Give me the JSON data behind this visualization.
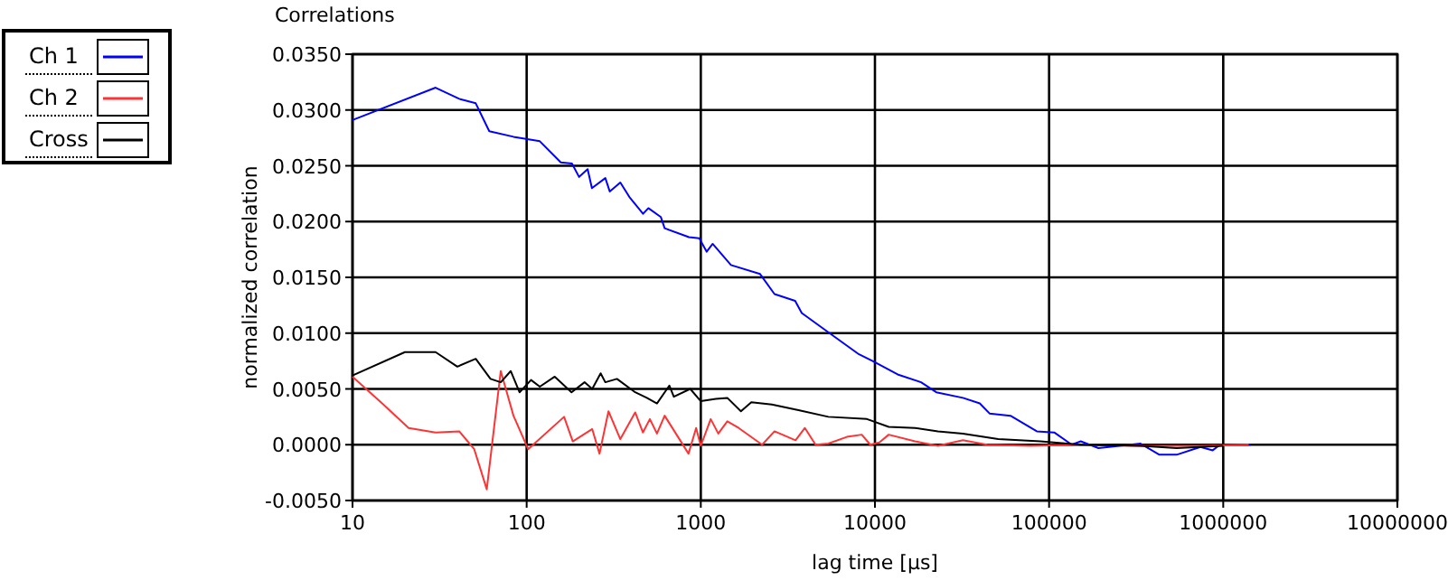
{
  "chart_data": {
    "type": "line",
    "title": "Correlations",
    "xlabel": "lag time [µs]",
    "ylabel": "normalized correlation",
    "log": "x",
    "grid": true,
    "legend": "top left",
    "marker": "none",
    "line_style": "solid",
    "xlim": [
      10,
      10000000
    ],
    "xticks": [
      10,
      100,
      1000,
      10000,
      100000,
      1000000,
      10000000
    ],
    "ylim": [
      -0.005,
      0.035
    ],
    "yticks": [
      {
        "value": -0.005,
        "label": "-0.0050"
      },
      {
        "value": 0,
        "label": "0.0000"
      },
      {
        "value": 0.005,
        "label": "0.0050"
      },
      {
        "value": 0.01,
        "label": "0.0100"
      },
      {
        "value": 0.015,
        "label": "0.0150"
      },
      {
        "value": 0.02,
        "label": "0.0200"
      },
      {
        "value": 0.025,
        "label": "0.0250"
      },
      {
        "value": 0.03,
        "label": "0.0300"
      },
      {
        "value": 0.035,
        "label": "0.0350"
      }
    ],
    "series": [
      {
        "name": "Ch 1",
        "color": "#0000ff",
        "x": [
          10,
          30,
          41,
          51,
          61,
          84,
          119,
          157,
          182,
          200,
          224,
          237,
          283,
          300,
          345,
          389,
          466,
          500,
          590,
          620,
          855,
          980,
          1080,
          1170,
          1490,
          2190,
          2650,
          3480,
          3800,
          5600,
          8100,
          9700,
          13500,
          18400,
          22500,
          32000,
          40000,
          45500,
          60000,
          85000,
          107000,
          135000,
          152000,
          192000,
          335000,
          430000,
          540000,
          740000,
          870000,
          960000,
          1440000
        ],
        "values": [
          0.0291,
          0.032,
          0.031,
          0.0306,
          0.0281,
          0.0276,
          0.0272,
          0.0253,
          0.0252,
          0.024,
          0.0247,
          0.023,
          0.0239,
          0.0227,
          0.0235,
          0.0222,
          0.0207,
          0.0212,
          0.0204,
          0.0194,
          0.0186,
          0.0185,
          0.0173,
          0.018,
          0.0161,
          0.0153,
          0.0135,
          0.0129,
          0.0118,
          0.0099,
          0.0081,
          0.0075,
          0.0063,
          0.0056,
          0.0047,
          0.0042,
          0.0037,
          0.0028,
          0.0026,
          0.0012,
          0.0011,
          0.0,
          0.0003,
          -0.0003,
          0.0001,
          -0.0009,
          -0.0009,
          -0.0002,
          -0.0005,
          0.0,
          0.0
        ]
      },
      {
        "name": "Ch 2",
        "color": "#ff3333",
        "x": [
          10,
          14.8,
          21,
          30,
          41,
          50,
          59,
          71,
          84,
          102,
          164,
          184,
          238,
          262,
          295,
          345,
          420,
          465,
          510,
          560,
          620,
          850,
          940,
          1000,
          1140,
          1260,
          1420,
          1650,
          2250,
          2650,
          3500,
          3960,
          4560,
          5400,
          6900,
          8400,
          9400,
          10600,
          12000,
          17000,
          23000,
          32000,
          44000,
          78000,
          152000,
          335000,
          740000,
          1400000
        ],
        "values": [
          0.0061,
          0.0037,
          0.0015,
          0.0011,
          0.0012,
          -0.0004,
          -0.004,
          0.0066,
          0.0026,
          -0.0004,
          0.0025,
          0.0003,
          0.0014,
          -0.0008,
          0.003,
          0.0005,
          0.0029,
          0.0011,
          0.0023,
          0.001,
          0.0026,
          -0.0008,
          0.0015,
          -0.0001,
          0.0023,
          0.001,
          0.0021,
          0.0015,
          0.0,
          0.0012,
          0.0004,
          0.0015,
          0.0,
          0.0001,
          0.0007,
          0.0009,
          0.0,
          0.0002,
          0.0009,
          0.0003,
          -0.0001,
          0.0004,
          0.0,
          -0.0001,
          0.0,
          -0.0001,
          -0.0001,
          0.0
        ]
      },
      {
        "name": "Cross",
        "color": "#000000",
        "x": [
          10,
          20,
          30,
          40,
          51,
          62,
          71,
          81,
          91,
          106,
          119,
          145,
          181,
          215,
          238,
          266,
          283,
          330,
          420,
          490,
          560,
          660,
          700,
          870,
          1000,
          1220,
          1420,
          1700,
          1950,
          2560,
          3640,
          5400,
          9000,
          12000,
          17000,
          23000,
          32000,
          51000,
          89000,
          152000,
          335000,
          540000,
          1000000
        ],
        "values": [
          0.0062,
          0.0083,
          0.0083,
          0.007,
          0.0077,
          0.0059,
          0.0056,
          0.0066,
          0.0047,
          0.0058,
          0.0052,
          0.0061,
          0.0047,
          0.0056,
          0.005,
          0.0064,
          0.0056,
          0.0059,
          0.0047,
          0.0042,
          0.0037,
          0.0053,
          0.0043,
          0.005,
          0.0039,
          0.0041,
          0.0042,
          0.003,
          0.0038,
          0.0036,
          0.0031,
          0.0025,
          0.0023,
          0.0016,
          0.0015,
          0.0012,
          0.001,
          0.0005,
          0.0003,
          0.0,
          -0.0001,
          -0.0003,
          -0.0001
        ]
      }
    ]
  }
}
